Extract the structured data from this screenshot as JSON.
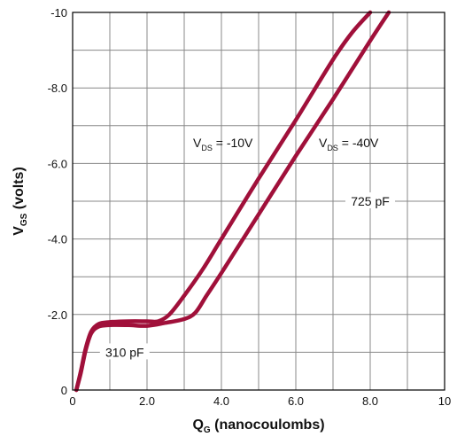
{
  "chart_data": {
    "type": "line",
    "title": "",
    "xlabel": {
      "main": "Q",
      "sub": "G",
      "rest": " (nanocoulombs)"
    },
    "ylabel": {
      "main": "V",
      "sub": "GS",
      "rest": " (volts)"
    },
    "xlim": [
      0,
      10
    ],
    "ylim": [
      0,
      -10
    ],
    "grid": true,
    "x_grid_step": 1,
    "y_grid_step": -1,
    "x_ticks": [
      {
        "value": 0,
        "label": "0"
      },
      {
        "value": 2,
        "label": "2.0"
      },
      {
        "value": 4,
        "label": "4.0"
      },
      {
        "value": 6,
        "label": "6.0"
      },
      {
        "value": 8,
        "label": "8.0"
      },
      {
        "value": 10,
        "label": "10"
      }
    ],
    "y_ticks": [
      {
        "value": 0,
        "label": "0"
      },
      {
        "value": -2,
        "label": "-2.0"
      },
      {
        "value": -4,
        "label": "-4.0"
      },
      {
        "value": -6,
        "label": "-6.0"
      },
      {
        "value": -8,
        "label": "-8.0"
      },
      {
        "value": -10,
        "label": "-10"
      }
    ],
    "series": [
      {
        "label": {
          "main": "V",
          "sub": "DS",
          "rest": " = -10V"
        },
        "color": "#A0103A",
        "x": [
          0.1,
          0.22,
          0.35,
          0.5,
          0.7,
          1.0,
          1.5,
          2.0,
          2.3,
          2.6,
          3.0,
          3.5,
          4.0,
          5.0,
          6.0,
          7.0,
          7.5,
          8.0
        ],
        "y": [
          0,
          -0.5,
          -1.1,
          -1.55,
          -1.75,
          -1.8,
          -1.82,
          -1.82,
          -1.82,
          -2.0,
          -2.5,
          -3.2,
          -4.0,
          -5.6,
          -7.15,
          -8.75,
          -9.45,
          -10.0
        ]
      },
      {
        "label": {
          "main": "V",
          "sub": "DS",
          "rest": " = -40V"
        },
        "color": "#A0103A",
        "x": [
          0.1,
          0.22,
          0.35,
          0.5,
          0.7,
          1.0,
          1.5,
          2.0,
          2.5,
          3.0,
          3.3,
          3.6,
          4.0,
          5.0,
          6.0,
          7.0,
          8.0,
          8.5
        ],
        "y": [
          0,
          -0.45,
          -1.05,
          -1.5,
          -1.68,
          -1.72,
          -1.72,
          -1.7,
          -1.78,
          -1.88,
          -2.05,
          -2.5,
          -3.1,
          -4.65,
          -6.2,
          -7.7,
          -9.25,
          -10.0
        ]
      }
    ],
    "annotations": [
      {
        "text": "310 pF",
        "x": 1.4,
        "y": -1.0
      },
      {
        "text": "725 pF",
        "x": 8.0,
        "y": -5.0
      }
    ]
  }
}
